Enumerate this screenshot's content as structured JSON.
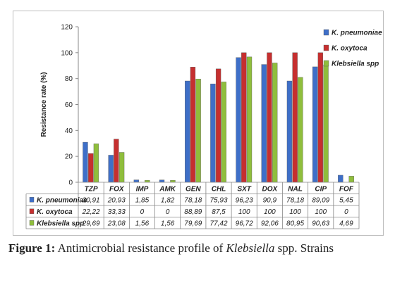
{
  "chart_data": {
    "type": "bar",
    "ylabel": "Resistance rate (%)",
    "ylim": [
      0,
      120
    ],
    "yticks": [
      0,
      20,
      40,
      60,
      80,
      100,
      120
    ],
    "grid": false,
    "legend_position": "top-right",
    "categories": [
      "TZP",
      "FOX",
      "IMP",
      "AMK",
      "GEN",
      "CHL",
      "SXT",
      "DOX",
      "NAL",
      "CIP",
      "FOF"
    ],
    "series": [
      {
        "name": "K. pneumoniae",
        "color": "#3e6fc8",
        "values": [
          30.91,
          20.93,
          1.85,
          1.82,
          78.18,
          75.93,
          96.23,
          90.9,
          78.18,
          89.09,
          5.45
        ],
        "labels": [
          "30,91",
          "20,93",
          "1,85",
          "1,82",
          "78,18",
          "75,93",
          "96,23",
          "90,9",
          "78,18",
          "89,09",
          "5,45"
        ]
      },
      {
        "name": "K. oxytoca",
        "color": "#c62f2f",
        "values": [
          22.22,
          33.33,
          0,
          0,
          88.89,
          87.5,
          100,
          100,
          100,
          100,
          0
        ],
        "labels": [
          "22,22",
          "33,33",
          "0",
          "0",
          "88,89",
          "87,5",
          "100",
          "100",
          "100",
          "100",
          "0"
        ]
      },
      {
        "name": "Klebsiella spp",
        "color": "#8fbe3c",
        "values": [
          29.69,
          23.08,
          1.56,
          1.56,
          79.69,
          77.42,
          96.72,
          92.06,
          80.95,
          90.63,
          4.69
        ],
        "labels": [
          "29,69",
          "23,08",
          "1,56",
          "1,56",
          "79,69",
          "77,42",
          "96,72",
          "92,06",
          "80,95",
          "90,63",
          "4,69"
        ]
      }
    ]
  },
  "caption": {
    "label": "Figure 1:",
    "text_before": " Antimicrobial resistance profile of ",
    "italic": "Klebsiella",
    "text_after": " spp. Strains"
  }
}
